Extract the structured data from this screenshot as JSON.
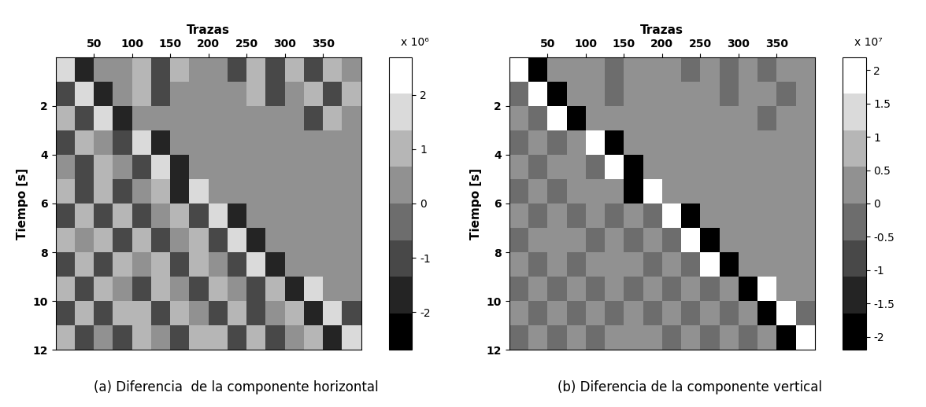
{
  "chart_data": [
    {
      "type": "heatmap",
      "caption": "(a) Diferencia  de la componente horizontal",
      "x_label": "Trazas",
      "y_label": "Tiempo [s]",
      "xlim": [
        0,
        400
      ],
      "xticks": [
        50,
        100,
        150,
        200,
        250,
        300,
        350
      ],
      "ylim": [
        12,
        0
      ],
      "yticks": [
        2,
        4,
        6,
        8,
        10,
        12
      ],
      "trace_edges": [
        0,
        25,
        50,
        75,
        100,
        125,
        150,
        175,
        200,
        225,
        250,
        275,
        300,
        325,
        350,
        375,
        400
      ],
      "time_edges": [
        0,
        1,
        2,
        3,
        4,
        5,
        6,
        7,
        8,
        9,
        10,
        11,
        12
      ],
      "cells": [
        [
          2000000.0,
          -2000000.0,
          0,
          0,
          800000.0,
          -800000.0,
          800000.0,
          0,
          0,
          -800000.0,
          800000.0,
          -800000.0,
          800000.0,
          -800000.0,
          800000.0,
          0
        ],
        [
          -800000.0,
          2000000.0,
          -2000000.0,
          0,
          800000.0,
          -800000.0,
          0,
          0,
          0,
          0,
          800000.0,
          -800000.0,
          0,
          800000.0,
          -800000.0,
          800000.0
        ],
        [
          800000.0,
          -800000.0,
          2000000.0,
          -2000000.0,
          0,
          0,
          0,
          0,
          0,
          0,
          0,
          0,
          0,
          -800000.0,
          800000.0,
          0
        ],
        [
          -800000.0,
          800000.0,
          0,
          -800000.0,
          2000000.0,
          -2000000.0,
          0,
          0,
          0,
          0,
          0,
          0,
          0,
          0,
          0,
          0
        ],
        [
          0,
          -800000.0,
          800000.0,
          0,
          -800000.0,
          2000000.0,
          -2000000.0,
          0,
          0,
          0,
          0,
          0,
          0,
          0,
          0,
          0
        ],
        [
          800000.0,
          -800000.0,
          800000.0,
          -800000.0,
          0,
          800000.0,
          -2000000.0,
          2000000.0,
          0,
          0,
          0,
          0,
          0,
          0,
          0,
          0
        ],
        [
          -800000.0,
          800000.0,
          -800000.0,
          800000.0,
          -800000.0,
          0,
          800000.0,
          -800000.0,
          2000000.0,
          -2000000.0,
          0,
          0,
          0,
          0,
          0,
          0
        ],
        [
          800000.0,
          0,
          800000.0,
          -800000.0,
          800000.0,
          -800000.0,
          0,
          800000.0,
          -800000.0,
          2000000.0,
          -2000000.0,
          0,
          0,
          0,
          0,
          0
        ],
        [
          -800000.0,
          800000.0,
          -800000.0,
          800000.0,
          0,
          800000.0,
          -800000.0,
          800000.0,
          0,
          -800000.0,
          2000000.0,
          -2000000.0,
          0,
          0,
          0,
          0
        ],
        [
          800000.0,
          -800000.0,
          800000.0,
          0,
          -800000.0,
          800000.0,
          0,
          -800000.0,
          800000.0,
          0,
          -800000.0,
          800000.0,
          -2000000.0,
          2000000.0,
          0,
          0
        ],
        [
          -800000.0,
          800000.0,
          -800000.0,
          800000.0,
          800000.0,
          -800000.0,
          800000.0,
          0,
          -800000.0,
          800000.0,
          -800000.0,
          0,
          800000.0,
          -2000000.0,
          2000000.0,
          -800000.0
        ],
        [
          800000.0,
          -800000.0,
          0,
          -800000.0,
          800000.0,
          0,
          -800000.0,
          800000.0,
          800000.0,
          -800000.0,
          800000.0,
          -800000.0,
          0,
          800000.0,
          -2000000.0,
          2000000.0
        ]
      ],
      "colorbar": {
        "range": [
          -2700000.0,
          2700000.0
        ],
        "label": "x 10⁶",
        "ticks": [
          {
            "value": -2000000,
            "label": "-2"
          },
          {
            "value": -1000000,
            "label": "-1"
          },
          {
            "value": 0,
            "label": "0"
          },
          {
            "value": 1000000,
            "label": "1"
          },
          {
            "value": 2000000,
            "label": "2"
          }
        ]
      }
    },
    {
      "type": "heatmap",
      "caption": "(b) Diferencia de la componente vertical",
      "x_label": "Trazas",
      "y_label": "Tiempo [s]",
      "xlim": [
        0,
        400
      ],
      "xticks": [
        50,
        100,
        150,
        200,
        250,
        300,
        350
      ],
      "ylim": [
        12,
        0
      ],
      "yticks": [
        2,
        4,
        6,
        8,
        10,
        12
      ],
      "trace_edges": [
        0,
        25,
        50,
        75,
        100,
        125,
        150,
        175,
        200,
        225,
        250,
        275,
        300,
        325,
        350,
        375,
        400
      ],
      "time_edges": [
        0,
        1,
        2,
        3,
        4,
        5,
        6,
        7,
        8,
        9,
        10,
        11,
        12
      ],
      "cells": [
        [
          20000000.0,
          -20000000.0,
          0,
          0,
          5000000.0,
          -5000000.0,
          5000000.0,
          0,
          0,
          -5000000.0,
          5000000.0,
          -5000000.0,
          5000000.0,
          -5000000.0,
          5000000.0,
          0
        ],
        [
          -5000000.0,
          20000000.0,
          -20000000.0,
          0,
          5000000.0,
          -5000000.0,
          0,
          0,
          0,
          0,
          5000000.0,
          -5000000.0,
          5000000.0,
          5000000.0,
          -5000000.0,
          5000000.0
        ],
        [
          5000000.0,
          -5000000.0,
          20000000.0,
          -20000000.0,
          0,
          0,
          0,
          0,
          0,
          0,
          0,
          0,
          0,
          -5000000.0,
          5000000.0,
          0
        ],
        [
          -5000000.0,
          5000000.0,
          -5000000.0,
          5000000.0,
          20000000.0,
          -20000000.0,
          0,
          0,
          0,
          0,
          0,
          0,
          0,
          0,
          0,
          0
        ],
        [
          5000000.0,
          -5000000.0,
          5000000.0,
          0,
          -5000000.0,
          20000000.0,
          -20000000.0,
          0,
          0,
          0,
          0,
          0,
          0,
          0,
          0,
          0
        ],
        [
          -5000000.0,
          5000000.0,
          -5000000.0,
          5000000.0,
          0,
          5000000.0,
          -20000000.0,
          20000000.0,
          0,
          0,
          0,
          0,
          0,
          0,
          0,
          0
        ],
        [
          5000000.0,
          -5000000.0,
          5000000.0,
          -5000000.0,
          5000000.0,
          -5000000.0,
          5000000.0,
          -5000000.0,
          20000000.0,
          -20000000.0,
          0,
          0,
          0,
          0,
          0,
          0
        ],
        [
          -5000000.0,
          5000000.0,
          0,
          5000000.0,
          -5000000.0,
          5000000.0,
          -5000000.0,
          5000000.0,
          -5000000.0,
          20000000.0,
          -20000000.0,
          0,
          0,
          0,
          0,
          0
        ],
        [
          5000000.0,
          -5000000.0,
          5000000.0,
          -5000000.0,
          5000000.0,
          0,
          5000000.0,
          -5000000.0,
          5000000.0,
          -5000000.0,
          20000000.0,
          -20000000.0,
          0,
          0,
          0,
          0
        ],
        [
          -5000000.0,
          5000000.0,
          -5000000.0,
          5000000.0,
          -5000000.0,
          5000000.0,
          -5000000.0,
          0,
          -5000000.0,
          5000000.0,
          -5000000.0,
          5000000.0,
          -20000000.0,
          20000000.0,
          0,
          0
        ],
        [
          5000000.0,
          -5000000.0,
          5000000.0,
          -5000000.0,
          5000000.0,
          -5000000.0,
          5000000.0,
          -5000000.0,
          5000000.0,
          -5000000.0,
          5000000.0,
          -5000000.0,
          5000000.0,
          -20000000.0,
          20000000.0,
          -5000000.0
        ],
        [
          -5000000.0,
          5000000.0,
          -5000000.0,
          5000000.0,
          -5000000.0,
          5000000.0,
          0,
          5000000.0,
          -5000000.0,
          5000000.0,
          -5000000.0,
          5000000.0,
          -5000000.0,
          5000000.0,
          -20000000.0,
          20000000.0
        ]
      ],
      "colorbar": {
        "range": [
          -22000000.0,
          22000000.0
        ],
        "label": "x 10⁷",
        "ticks": [
          {
            "value": -20000000,
            "label": "-2"
          },
          {
            "value": -15000000,
            "label": "-1.5"
          },
          {
            "value": -10000000,
            "label": "-1"
          },
          {
            "value": -5000000,
            "label": "-0.5"
          },
          {
            "value": 0,
            "label": "0"
          },
          {
            "value": 5000000,
            "label": "0.5"
          },
          {
            "value": 10000000,
            "label": "1"
          },
          {
            "value": 15000000,
            "label": "1.5"
          },
          {
            "value": 20000000,
            "label": "2"
          }
        ]
      }
    }
  ]
}
